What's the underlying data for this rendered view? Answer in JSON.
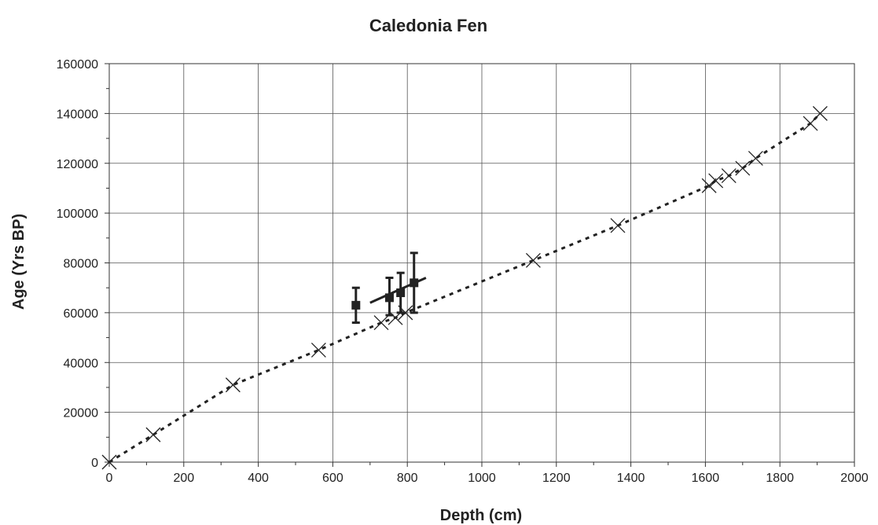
{
  "chart_data": {
    "type": "scatter",
    "title": "Caledonia Fen",
    "xlabel": "Depth (cm)",
    "ylabel": "Age (Yrs BP)",
    "xlim": [
      0,
      2000
    ],
    "ylim": [
      0,
      160000
    ],
    "x_ticks": [
      "0",
      "200",
      "400",
      "600",
      "800",
      "1000",
      "1200",
      "1400",
      "1600",
      "1800",
      "2000"
    ],
    "y_ticks": [
      "0",
      "20000",
      "40000",
      "60000",
      "80000",
      "100000",
      "120000",
      "140000",
      "160000"
    ],
    "grid": true,
    "legend": "none",
    "series": [
      {
        "marker": "x",
        "line": "dotted",
        "color": "#222222",
        "points": [
          {
            "x": 0,
            "y": 0
          },
          {
            "x": 118,
            "y": 11000
          },
          {
            "x": 332,
            "y": 31000
          },
          {
            "x": 562,
            "y": 45000
          },
          {
            "x": 730,
            "y": 56000
          },
          {
            "x": 768,
            "y": 58000
          },
          {
            "x": 795,
            "y": 60000
          },
          {
            "x": 1138,
            "y": 81000
          },
          {
            "x": 1365,
            "y": 95000
          },
          {
            "x": 1610,
            "y": 111000
          },
          {
            "x": 1628,
            "y": 113000
          },
          {
            "x": 1663,
            "y": 115000
          },
          {
            "x": 1700,
            "y": 118000
          },
          {
            "x": 1735,
            "y": 122000
          },
          {
            "x": 1882,
            "y": 136000
          },
          {
            "x": 1908,
            "y": 140000
          }
        ]
      },
      {
        "marker": "square",
        "line": "none",
        "color": "#222222",
        "points": [
          {
            "x": 662,
            "y": 63000,
            "err_low": 56000,
            "err_high": 70000
          },
          {
            "x": 752,
            "y": 66000,
            "err_low": 59000,
            "err_high": 74000
          },
          {
            "x": 782,
            "y": 68000,
            "err_low": 60000,
            "err_high": 76000
          },
          {
            "x": 818,
            "y": 72000,
            "err_low": 60000,
            "err_high": 84000
          }
        ],
        "trendline": {
          "x": [
            700,
            850
          ],
          "y": [
            64000,
            74000
          ]
        }
      }
    ]
  }
}
